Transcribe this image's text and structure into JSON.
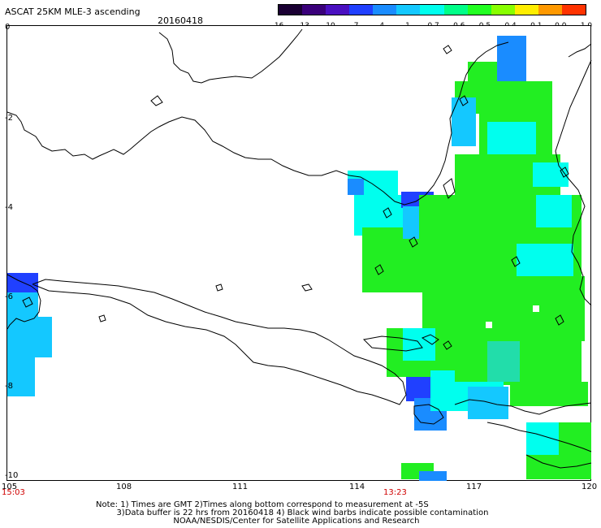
{
  "header": {
    "title": "ASCAT 25KM MLE-3 ascending",
    "date": "20160418"
  },
  "colorbar": {
    "tick_labels": [
      "-16",
      "-13",
      "-10",
      "-7",
      "-4",
      "-1",
      "-0.7",
      "-0.6",
      "-0.5",
      "-0.4",
      "-0.1",
      "0.0",
      "1.0"
    ],
    "colors": [
      "#1a0033",
      "#3a007a",
      "#4a10c0",
      "#2040ff",
      "#1a8cff",
      "#14c8ff",
      "#00ffee",
      "#00ff88",
      "#22ff22",
      "#88ff00",
      "#ffee00",
      "#ff9900",
      "#ff3300"
    ]
  },
  "axes": {
    "lat_labels": [
      "0",
      "-2",
      "-4",
      "-6",
      "-8",
      "-10"
    ],
    "lon_labels": [
      "105",
      "108",
      "111",
      "114",
      "117",
      "120"
    ],
    "time_labels": [
      "15:03",
      "13:23"
    ]
  },
  "footer": {
    "line1": "Note: 1) Times are GMT 2)Times along bottom correspond to measurement at -5S",
    "line2": "3)Data buffer is 22 hrs from 20160418 4) Black wind barbs indicate possible contamination",
    "line3": "NOAA/NESDIS/Center for Satellite Applications and Research"
  },
  "map_colors": {
    "green": "#22ee22",
    "cyan": "#00ffee",
    "teal": "#22ddaa",
    "light_blue": "#14c8ff",
    "blue": "#1a8cff",
    "dark_blue": "#2040ff",
    "coast": "#000000"
  }
}
